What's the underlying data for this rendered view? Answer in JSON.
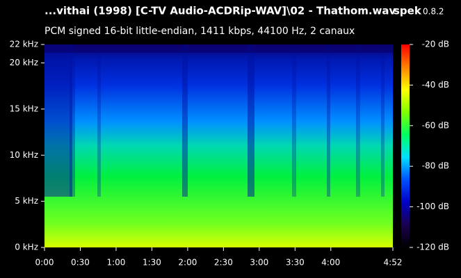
{
  "chart_data": {
    "type": "spectrogram",
    "title": "...vithai (1998) [C-TV Audio-ACDRip-WAV]\\02 - Thathom.wav",
    "app_name": "spek",
    "app_version": "0.8.2",
    "subtitle": "PCM signed 16-bit little-endian, 1411 kbps, 44100 Hz, 2 canaux",
    "xlim": [
      0,
      292
    ],
    "xticks": [
      {
        "value": 0,
        "label": "0:00"
      },
      {
        "value": 30,
        "label": "0:30"
      },
      {
        "value": 60,
        "label": "1:00"
      },
      {
        "value": 90,
        "label": "1:30"
      },
      {
        "value": 120,
        "label": "2:00"
      },
      {
        "value": 150,
        "label": "2:30"
      },
      {
        "value": 180,
        "label": "3:00"
      },
      {
        "value": 210,
        "label": "3:30"
      },
      {
        "value": 240,
        "label": "4:00"
      },
      {
        "value": 292,
        "label": "4:52"
      }
    ],
    "ylim": [
      0,
      22
    ],
    "yticks": [
      {
        "value": 0,
        "label": "0 kHz"
      },
      {
        "value": 5,
        "label": "5 kHz"
      },
      {
        "value": 10,
        "label": "10 kHz"
      },
      {
        "value": 15,
        "label": "15 kHz"
      },
      {
        "value": 20,
        "label": "20 kHz"
      },
      {
        "value": 22,
        "label": "22 kHz"
      }
    ],
    "clim": [
      -120,
      -20
    ],
    "cticks": [
      {
        "value": -20,
        "label": "-20 dB"
      },
      {
        "value": -40,
        "label": "-40 dB"
      },
      {
        "value": -60,
        "label": "-60 dB"
      },
      {
        "value": -80,
        "label": "-80 dB"
      },
      {
        "value": -100,
        "label": "-100 dB"
      },
      {
        "value": -120,
        "label": "-120 dB"
      }
    ],
    "colormap": [
      "#000000",
      "#1a0050",
      "#0000c8",
      "#0050ff",
      "#00e0ff",
      "#00ff60",
      "#80ff00",
      "#ffff00",
      "#ff8000",
      "#ff0000"
    ]
  }
}
